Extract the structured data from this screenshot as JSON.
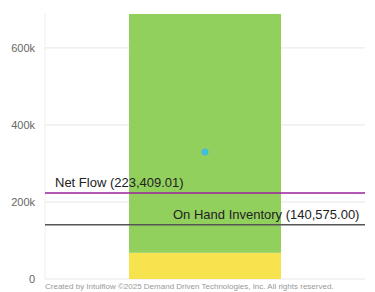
{
  "chart_data": {
    "type": "bar",
    "stacked": true,
    "categories": [
      null
    ],
    "series": [
      {
        "color": "#f7e34d",
        "values": [
          68000
        ]
      },
      {
        "color": "#92d05e",
        "values": [
          620000
        ]
      },
      {
        "type": "scatter",
        "marker": "circle",
        "color": "#3fbfd8",
        "values": [
          330000
        ]
      }
    ],
    "ylim": [
      0,
      688000
    ],
    "yticks": [
      0,
      {
        "value": 200000,
        "label": "200k"
      },
      {
        "value": 400000,
        "label": "400k"
      },
      {
        "value": 600000,
        "label": "600k"
      }
    ],
    "grid": true,
    "tick_labels": "y",
    "reference_lines": [
      {
        "label": "Net Flow (223,409.01)",
        "value": 223409.01,
        "color": "#9a1f9e"
      },
      {
        "label": "On Hand Inventory (140,575.00)",
        "value": 140575.0,
        "color": "#555555"
      }
    ],
    "credit": "Created by Intuiflow ©2025 Demand Driven Technologies, Inc. All rights reserved."
  }
}
